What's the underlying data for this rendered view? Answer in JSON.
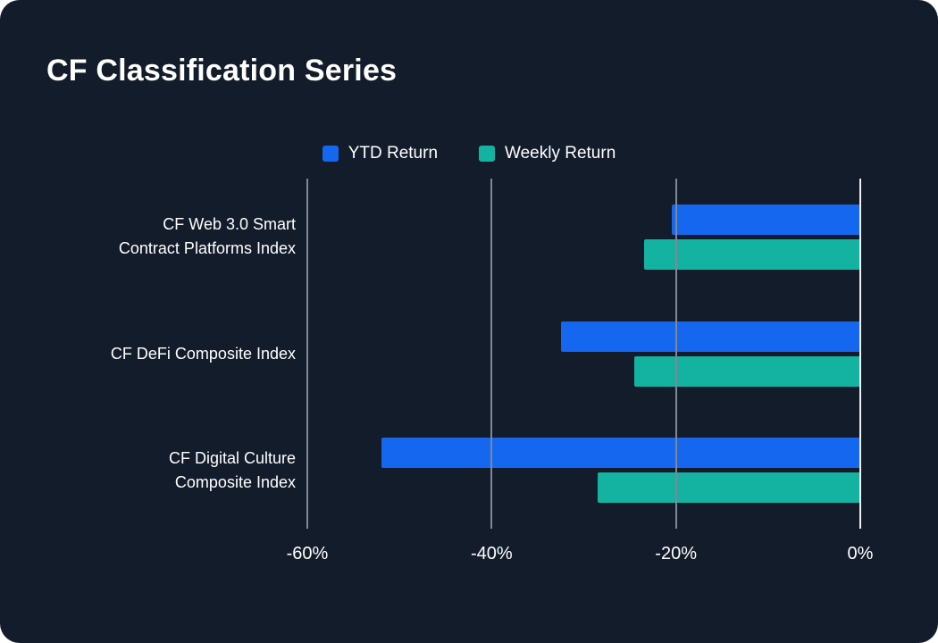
{
  "title": "CF Classification Series",
  "colors": {
    "background": "#131c2b",
    "ytd_blue": "#1667ef",
    "weekly_teal": "#14b3a1",
    "gridline": "#7f8896",
    "zero_line": "#eef0f3",
    "text": "#ffffff"
  },
  "legend": [
    {
      "label": "YTD Return",
      "color": "#1667ef"
    },
    {
      "label": "Weekly Return",
      "color": "#14b3a1"
    }
  ],
  "chart_data": {
    "type": "bar",
    "orientation": "horizontal",
    "title": "CF Classification Series",
    "categories": [
      "CF Web 3.0 Smart Contract Platforms Index",
      "CF DeFi Composite Index",
      "CF Digital Culture Composite Index"
    ],
    "category_lines": [
      [
        "CF Web 3.0 Smart",
        "Contract Platforms Index"
      ],
      [
        "CF DeFi Composite Index"
      ],
      [
        "CF Digital Culture",
        "Composite Index"
      ]
    ],
    "series": [
      {
        "name": "YTD Return",
        "color": "#1667ef",
        "values": [
          -20.5,
          -32.5,
          -52
        ]
      },
      {
        "name": "Weekly Return",
        "color": "#14b3a1",
        "values": [
          -23.5,
          -24.5,
          -28.5
        ]
      }
    ],
    "xlim": [
      -60,
      0
    ],
    "xticks": [
      -60,
      -40,
      -20,
      0
    ],
    "xtick_labels": [
      "-60%",
      "-40%",
      "-20%",
      "0%"
    ],
    "xlabel": "",
    "ylabel": "",
    "grid": "vertical-gridlines",
    "legend_position": "top-center"
  }
}
